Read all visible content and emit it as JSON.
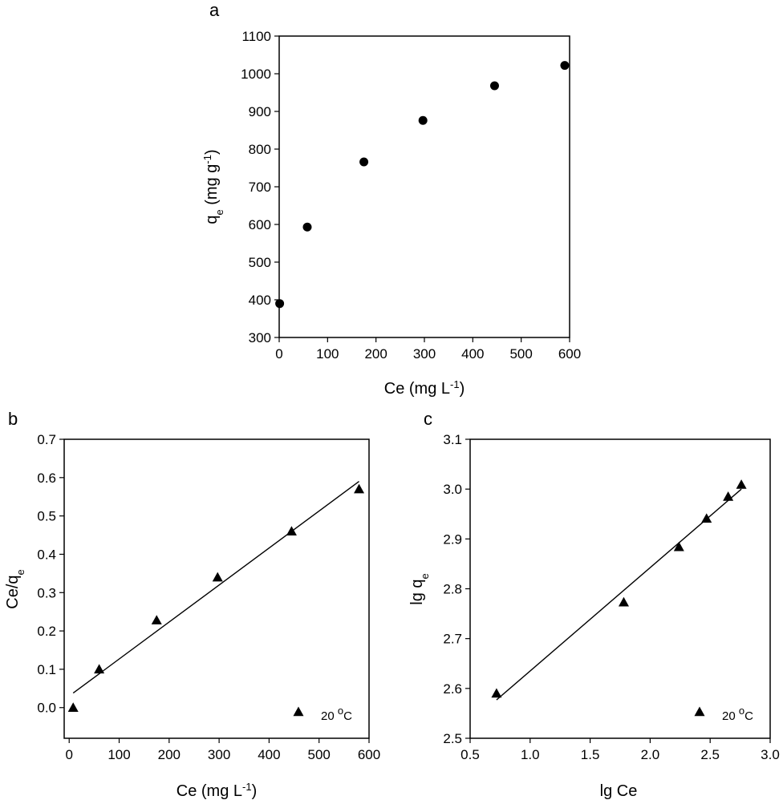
{
  "chart_data": [
    {
      "panel_label": "a",
      "type": "scatter",
      "xlabel": {
        "main": "Ce (mg L",
        "sup": "-1",
        "end": ")"
      },
      "ylabel": {
        "main": "q",
        "sub": "e",
        "mid": " (mg g",
        "sup": "-1",
        "end": ")"
      },
      "xlim": [
        0,
        600
      ],
      "ylim": [
        300,
        1100
      ],
      "xticks": [
        0,
        100,
        200,
        300,
        400,
        500,
        600
      ],
      "yticks": [
        300,
        400,
        500,
        600,
        700,
        800,
        900,
        1000,
        1100
      ],
      "marker": "circle",
      "x": [
        1,
        58,
        175,
        297,
        445,
        590
      ],
      "y": [
        390,
        593,
        766,
        876,
        968,
        1022
      ]
    },
    {
      "panel_label": "b",
      "type": "scatter",
      "xlabel": {
        "main": "Ce (mg L",
        "sup": "-1",
        "end": ")"
      },
      "ylabel": {
        "main": "Ce/q",
        "sub": "e",
        "mid": "",
        "sup": "",
        "end": ""
      },
      "xlim": [
        -10,
        600
      ],
      "ylim": [
        -0.08,
        0.7
      ],
      "xticks": [
        0,
        100,
        200,
        300,
        400,
        500,
        600
      ],
      "yticks": [
        0.0,
        0.1,
        0.2,
        0.3,
        0.4,
        0.5,
        0.6,
        0.7
      ],
      "ytick_decimals": 1,
      "marker": "triangle",
      "x": [
        8,
        60,
        175,
        297,
        445,
        580
      ],
      "y": [
        0.0,
        0.1,
        0.228,
        0.34,
        0.46,
        0.57
      ],
      "fit_line": {
        "x": [
          8,
          580
        ],
        "y": [
          0.038,
          0.59
        ]
      },
      "legend": {
        "text": "20 ",
        "sup": "o",
        "end": "C",
        "position": "bottom-right"
      }
    },
    {
      "panel_label": "c",
      "type": "scatter",
      "xlabel": {
        "main": "lg Ce",
        "sup": "",
        "end": ""
      },
      "ylabel": {
        "main": "lg q",
        "sub": "e",
        "mid": "",
        "sup": "",
        "end": ""
      },
      "xlim": [
        0.5,
        3.0
      ],
      "ylim": [
        2.5,
        3.1
      ],
      "xticks": [
        0.5,
        1.0,
        1.5,
        2.0,
        2.5,
        3.0
      ],
      "yticks": [
        2.5,
        2.6,
        2.7,
        2.8,
        2.9,
        3.0,
        3.1
      ],
      "xtick_decimals": 1,
      "ytick_decimals": 1,
      "marker": "triangle",
      "x": [
        0.72,
        1.78,
        2.24,
        2.47,
        2.65,
        2.76
      ],
      "y": [
        2.59,
        2.773,
        2.884,
        2.941,
        2.985,
        3.009
      ],
      "fit_line": {
        "x": [
          0.72,
          2.76
        ],
        "y": [
          2.577,
          3.0
        ]
      },
      "legend": {
        "text": "20 ",
        "sup": "o",
        "end": "C",
        "position": "bottom-right"
      }
    }
  ]
}
